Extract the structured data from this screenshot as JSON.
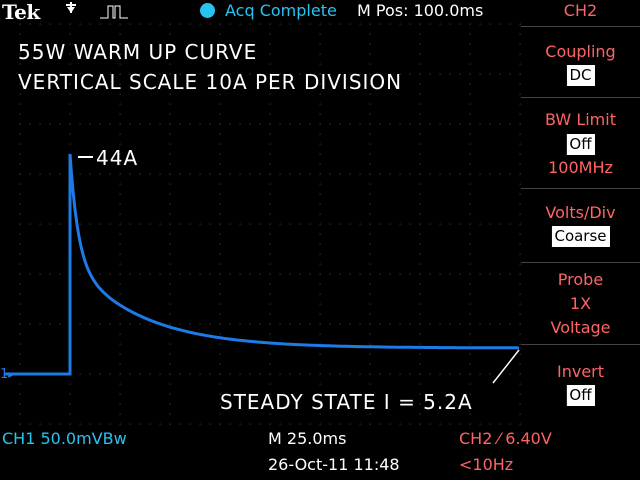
{
  "header": {
    "brand": "Tek",
    "acq_status": "Acq Complete",
    "position": "M Pos: 100.0ms",
    "channel": "CH2"
  },
  "annotations": {
    "title_line1": "55W WARM UP CURVE",
    "title_line2": "VERTICAL SCALE 10A PER DIVISION",
    "peak_label": "44A",
    "steady_label": "STEADY STATE I = 5.2A",
    "ch_marker": "1"
  },
  "menu": {
    "coupling": {
      "title": "Coupling",
      "value": "DC"
    },
    "bw_limit": {
      "title": "BW Limit",
      "value": "Off",
      "sub": "100MHz"
    },
    "volts_div": {
      "title": "Volts/Div",
      "value": "Coarse"
    },
    "probe": {
      "title": "Probe",
      "line1": "1X",
      "line2": "Voltage"
    },
    "invert": {
      "title": "Invert",
      "value": "Off"
    }
  },
  "status": {
    "ch1": "CH1  50.0mVBw",
    "timebase": "M 25.0ms",
    "trigger": "CH2 ⁄ 6.40V",
    "date": "26-Oct-11 11:48",
    "freq": "<10Hz"
  },
  "colors": {
    "trace": "#1e7be6",
    "grid": "#3a3a3a",
    "cyan": "#27c3f2",
    "menu_red": "#ff6464"
  },
  "trace_data": {
    "units": "A",
    "baseline": 0,
    "peak": 44,
    "steady": 5.2
  }
}
